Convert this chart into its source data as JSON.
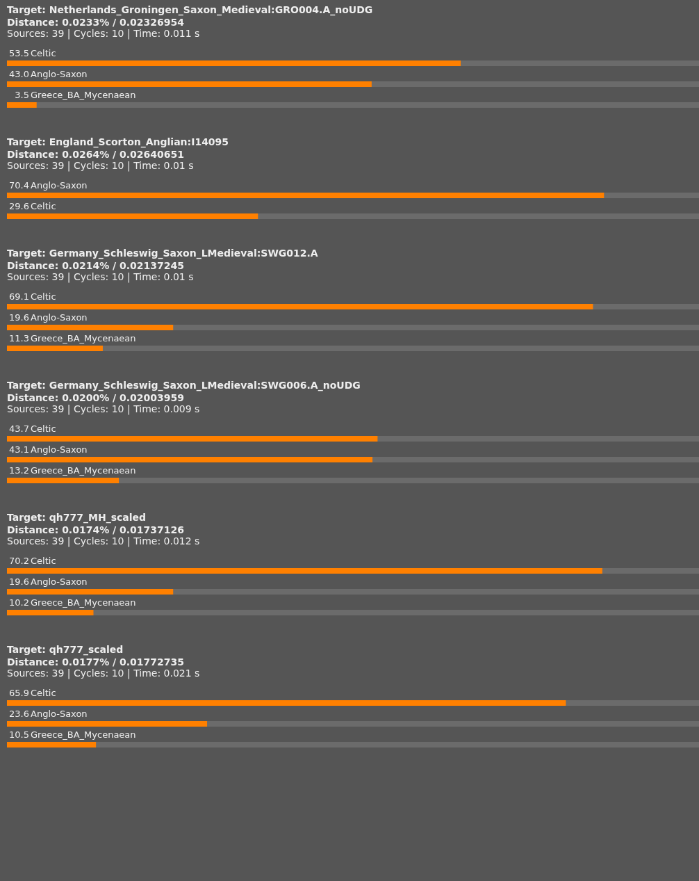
{
  "chart_data": [
    {
      "type": "bar",
      "orientation": "horizontal",
      "title": "Target: Netherlands_Groningen_Saxon_Medieval:GRO004.A_noUDG",
      "subtitle": "Distance: 0.0233% / 0.02326954",
      "annotations": [
        "Sources: 39 | Cycles: 10 | Time: 0.011 s"
      ],
      "categories": [
        "Celtic",
        "Anglo-Saxon",
        "Greece_BA_Mycenaean"
      ],
      "values": [
        53.5,
        43.0,
        3.5
      ],
      "value_labels": [
        "53.5",
        "43.0",
        "3.5"
      ],
      "color": "#ff8000",
      "xlim": [
        0,
        81.6
      ]
    },
    {
      "type": "bar",
      "orientation": "horizontal",
      "title": "Target: England_Scorton_Anglian:I14095",
      "subtitle": "Distance: 0.0264% / 0.02640651",
      "annotations": [
        "Sources: 39 | Cycles: 10 | Time: 0.01 s"
      ],
      "categories": [
        "Anglo-Saxon",
        "Celtic"
      ],
      "values": [
        70.4,
        29.6
      ],
      "value_labels": [
        "70.4",
        "29.6"
      ],
      "color": "#ff8000",
      "xlim": [
        0,
        81.6
      ]
    },
    {
      "type": "bar",
      "orientation": "horizontal",
      "title": "Target: Germany_Schleswig_Saxon_LMedieval:SWG012.A",
      "subtitle": "Distance: 0.0214% / 0.02137245",
      "annotations": [
        "Sources: 39 | Cycles: 10 | Time: 0.01 s"
      ],
      "categories": [
        "Celtic",
        "Anglo-Saxon",
        "Greece_BA_Mycenaean"
      ],
      "values": [
        69.1,
        19.6,
        11.3
      ],
      "value_labels": [
        "69.1",
        "19.6",
        "11.3"
      ],
      "color": "#ff8000",
      "xlim": [
        0,
        81.6
      ]
    },
    {
      "type": "bar",
      "orientation": "horizontal",
      "title": "Target: Germany_Schleswig_Saxon_LMedieval:SWG006.A_noUDG",
      "subtitle": "Distance: 0.0200% / 0.02003959",
      "annotations": [
        "Sources: 39 | Cycles: 10 | Time: 0.009 s"
      ],
      "categories": [
        "Celtic",
        "Anglo-Saxon",
        "Greece_BA_Mycenaean"
      ],
      "values": [
        43.7,
        43.1,
        13.2
      ],
      "value_labels": [
        "43.7",
        "43.1",
        "13.2"
      ],
      "color": "#ff8000",
      "xlim": [
        0,
        81.6
      ]
    },
    {
      "type": "bar",
      "orientation": "horizontal",
      "title": "Target: qh777_MH_scaled",
      "subtitle": "Distance: 0.0174% / 0.01737126",
      "annotations": [
        "Sources: 39 | Cycles: 10 | Time: 0.012 s"
      ],
      "categories": [
        "Celtic",
        "Anglo-Saxon",
        "Greece_BA_Mycenaean"
      ],
      "values": [
        70.2,
        19.6,
        10.2
      ],
      "value_labels": [
        "70.2",
        "19.6",
        "10.2"
      ],
      "color": "#ff8000",
      "xlim": [
        0,
        81.6
      ]
    },
    {
      "type": "bar",
      "orientation": "horizontal",
      "title": "Target: qh777_scaled",
      "subtitle": "Distance: 0.0177% / 0.01772735",
      "annotations": [
        "Sources: 39 | Cycles: 10 | Time: 0.021 s"
      ],
      "categories": [
        "Celtic",
        "Anglo-Saxon",
        "Greece_BA_Mycenaean"
      ],
      "values": [
        65.9,
        23.6,
        10.5
      ],
      "value_labels": [
        "65.9",
        "23.6",
        "10.5"
      ],
      "color": "#ff8000",
      "xlim": [
        0,
        81.6
      ]
    }
  ]
}
